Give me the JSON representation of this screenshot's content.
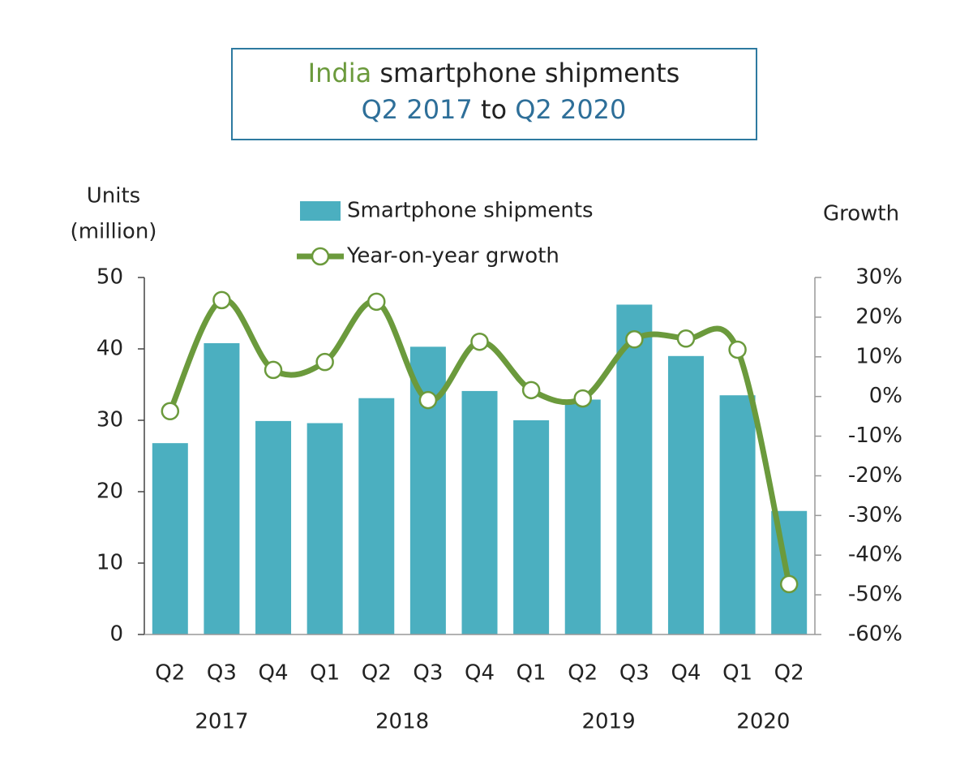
{
  "chart_data": {
    "type": "bar-line",
    "title": [
      [
        {
          "text": "India",
          "color": "#6b9a3c"
        },
        {
          "text": " smartphone shipments",
          "color": "#222222"
        }
      ],
      [
        {
          "text": "Q2 2017",
          "color": "#2e6f99"
        },
        {
          "text": " to ",
          "color": "#222222"
        },
        {
          "text": "Q2 2020",
          "color": "#2e6f99"
        }
      ]
    ],
    "ylabel": [
      "Units",
      "(million)"
    ],
    "y2label": "Growth",
    "categories": [
      "Q2",
      "Q3",
      "Q4",
      "Q1",
      "Q2",
      "Q3",
      "Q4",
      "Q1",
      "Q2",
      "Q3",
      "Q4",
      "Q1",
      "Q2"
    ],
    "groups": [
      {
        "label": "2017",
        "span": 3
      },
      {
        "label": "2018",
        "span": 4
      },
      {
        "label": "2019",
        "span": 4
      },
      {
        "label": "2020",
        "span": 2
      }
    ],
    "series": [
      {
        "name": "Smartphone shipments",
        "type": "bar",
        "color": "#4bafc0",
        "values": [
          26.8,
          40.8,
          29.9,
          29.6,
          33.1,
          40.3,
          34.1,
          30.0,
          32.9,
          46.2,
          39.0,
          33.5,
          17.3
        ]
      },
      {
        "name": "Year-on-year grwoth",
        "type": "line",
        "axis": "y2",
        "color": "#6b9a3c",
        "smooth": true,
        "values": [
          -3.7,
          24.3,
          6.7,
          8.7,
          23.9,
          -0.9,
          13.8,
          1.6,
          -0.5,
          14.4,
          14.6,
          11.8,
          -47.3
        ]
      }
    ],
    "ylim": [
      0,
      50
    ],
    "yticks": [
      0,
      10,
      20,
      30,
      40,
      50
    ],
    "y2lim": [
      -60,
      30
    ],
    "y2ticks": [
      {
        "value": -60,
        "label": "-60%"
      },
      {
        "value": -50,
        "label": "-50%"
      },
      {
        "value": -40,
        "label": "-40%"
      },
      {
        "value": -30,
        "label": "-30%"
      },
      {
        "value": -20,
        "label": "-20%"
      },
      {
        "value": -10,
        "label": "-10%"
      },
      {
        "value": 0,
        "label": "0%"
      },
      {
        "value": 10,
        "label": "10%"
      },
      {
        "value": 20,
        "label": "20%"
      },
      {
        "value": 30,
        "label": "30%"
      }
    ],
    "grid": false
  }
}
